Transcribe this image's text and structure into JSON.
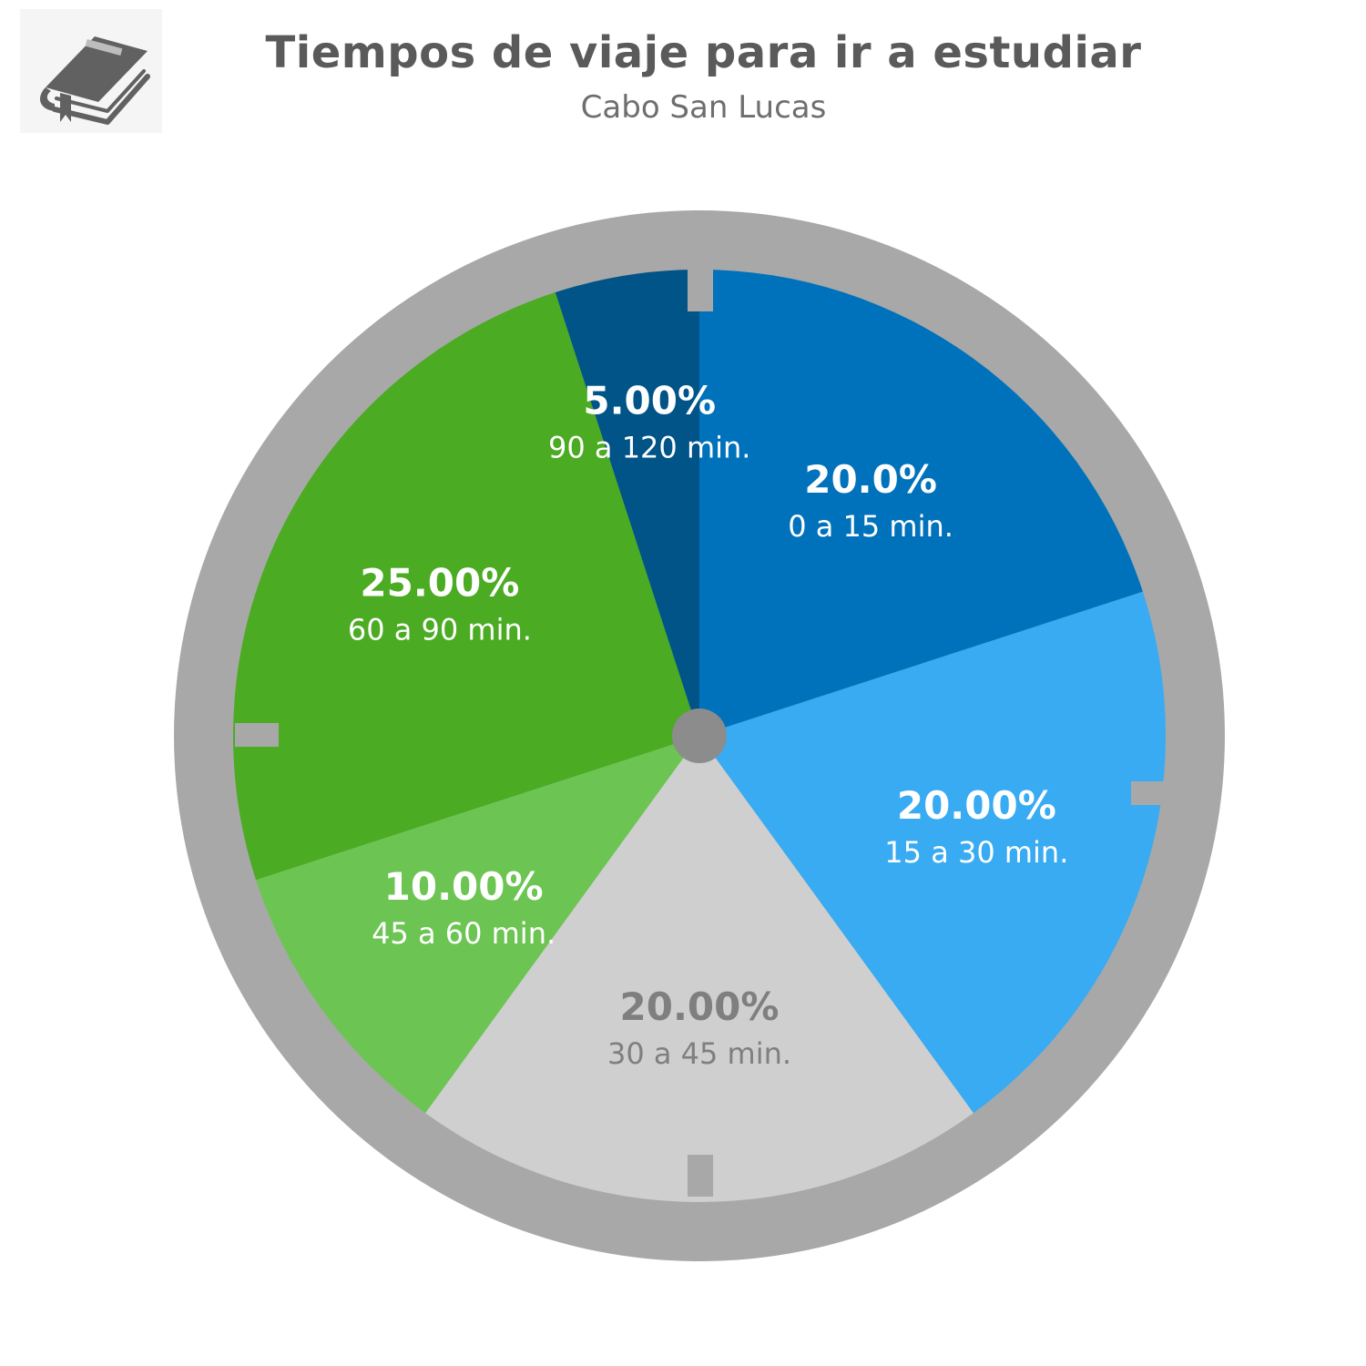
{
  "header": {
    "title": "Tiempos de viaje para ir a estudiar",
    "subtitle": "Cabo San Lucas",
    "logo_icon": "book-icon"
  },
  "chart_data": {
    "type": "pie",
    "title": "Tiempos de viaje para ir a estudiar",
    "subtitle": "Cabo San Lucas",
    "start": "12 o'clock",
    "direction": "clockwise",
    "slices": [
      {
        "label": "0 a 15 min.",
        "value": 20,
        "value_label": "20.0%",
        "color": "#0072BB",
        "text_color": "#ffffff"
      },
      {
        "label": "15 a 30 min.",
        "value": 20,
        "value_label": "20.00%",
        "color": "#38ABF2",
        "text_color": "#ffffff"
      },
      {
        "label": "30 a 45 min.",
        "value": 20,
        "value_label": "20.00%",
        "color": "#CFCFCF",
        "text_color": "#7F7F7F"
      },
      {
        "label": "45 a 60 min.",
        "value": 10,
        "value_label": "10.00%",
        "color": "#6CC552",
        "text_color": "#ffffff"
      },
      {
        "label": "60 a 90 min.",
        "value": 25,
        "value_label": "25.00%",
        "color": "#4BAB22",
        "text_color": "#ffffff"
      },
      {
        "label": "90 a 120 min.",
        "value": 5,
        "value_label": "5.00%",
        "color": "#005487",
        "text_color": "#ffffff"
      }
    ],
    "ring_color": "#A8A8A8",
    "hub_color": "#8C8C8C",
    "legend": "none"
  }
}
